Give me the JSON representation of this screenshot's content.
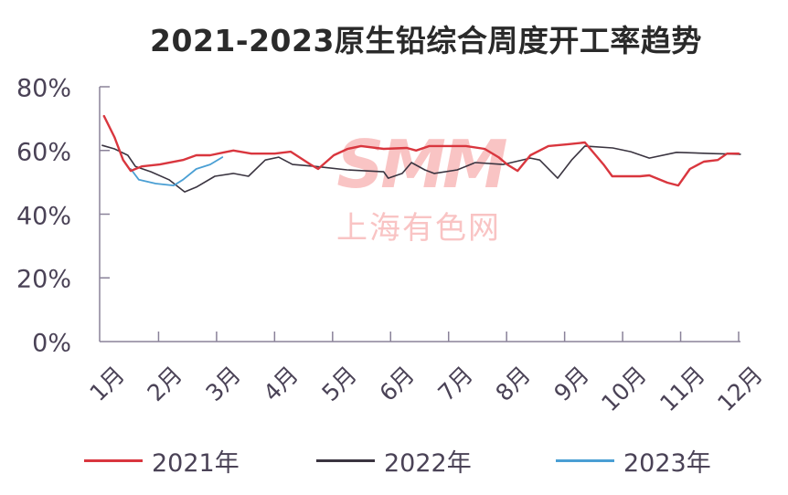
{
  "title": "2021-2023原生铅综合周度开工率趋势",
  "watermark": {
    "en": "SMM",
    "cn": "上海有色网"
  },
  "colors": {
    "series_2021": "#d9363e",
    "series_2022": "#3a3440",
    "series_2023": "#4a9fd4",
    "axis": "#8a8299",
    "watermark": "#f9c4c4"
  },
  "legend": [
    {
      "label": "2021年",
      "color": "#d9363e"
    },
    {
      "label": "2022年",
      "color": "#3a3440"
    },
    {
      "label": "2023年",
      "color": "#4a9fd4"
    }
  ],
  "chart_data": {
    "type": "line",
    "title": "2021-2023原生铅综合周度开工率趋势",
    "xlabel": "",
    "ylabel": "",
    "categories": [
      "1月",
      "2月",
      "3月",
      "4月",
      "5月",
      "6月",
      "7月",
      "8月",
      "9月",
      "10月",
      "11月",
      "12月"
    ],
    "yticks": [
      "0%",
      "20%",
      "40%",
      "60%",
      "80%"
    ],
    "ylim": [
      0,
      80
    ],
    "grid": false,
    "legend_position": "bottom",
    "series": [
      {
        "name": "2021年",
        "x": [
          1.06,
          1.24,
          1.39,
          1.52,
          1.71,
          2.02,
          2.42,
          2.65,
          2.89,
          3.13,
          3.29,
          3.6,
          4.0,
          4.28,
          4.62,
          4.75,
          5.02,
          5.26,
          5.49,
          5.88,
          6.28,
          6.44,
          6.67,
          7.07,
          7.3,
          7.62,
          7.86,
          8.01,
          8.19,
          8.41,
          8.72,
          9.04,
          9.35,
          9.67,
          9.82,
          10.3,
          10.46,
          10.77,
          10.96,
          11.16,
          11.4,
          11.64,
          11.8,
          12.0
        ],
        "values": [
          70.8,
          64.2,
          57.0,
          53.6,
          55.0,
          55.6,
          57.0,
          58.5,
          58.5,
          59.4,
          60.0,
          59.0,
          59.0,
          59.6,
          55.6,
          54.2,
          58.5,
          60.5,
          61.4,
          60.5,
          60.8,
          60.0,
          61.4,
          61.4,
          61.4,
          60.5,
          57.9,
          55.6,
          53.6,
          58.5,
          61.4,
          61.9,
          62.5,
          55.6,
          51.9,
          51.9,
          52.2,
          49.9,
          49.0,
          54.2,
          56.5,
          57.0,
          59.0,
          59.0
        ]
      },
      {
        "name": "2022年",
        "x": [
          1.03,
          1.24,
          1.47,
          1.6,
          1.87,
          2.18,
          2.45,
          2.65,
          2.97,
          3.29,
          3.55,
          3.84,
          4.07,
          4.31,
          4.7,
          5.25,
          5.88,
          5.96,
          6.2,
          6.36,
          6.59,
          6.75,
          7.15,
          7.46,
          7.94,
          8.41,
          8.57,
          8.88,
          9.12,
          9.35,
          9.83,
          10.14,
          10.46,
          10.93,
          11.56,
          12.03
        ],
        "values": [
          61.6,
          60.5,
          58.5,
          55.0,
          53.3,
          50.8,
          47.0,
          48.5,
          51.9,
          52.8,
          51.9,
          57.0,
          57.9,
          55.6,
          55.0,
          53.9,
          53.3,
          51.3,
          52.8,
          56.2,
          53.9,
          52.8,
          53.9,
          56.2,
          55.6,
          57.6,
          57.0,
          51.3,
          57.0,
          61.4,
          60.8,
          59.6,
          57.6,
          59.4,
          59.0,
          58.8
        ]
      },
      {
        "name": "2023年",
        "x": [
          1.52,
          1.66,
          1.95,
          2.26,
          2.42,
          2.65,
          2.89,
          3.1
        ],
        "values": [
          54.2,
          50.8,
          49.6,
          49.0,
          50.8,
          54.2,
          55.6,
          57.9
        ]
      }
    ]
  }
}
